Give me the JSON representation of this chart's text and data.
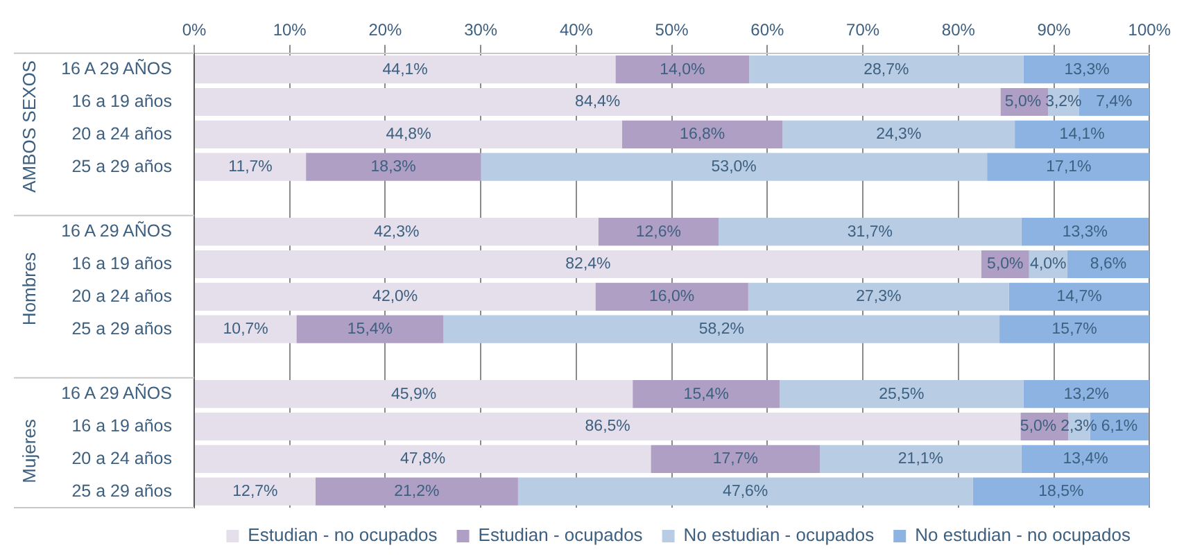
{
  "chart_data": {
    "type": "bar",
    "orientation": "horizontal",
    "stacked": true,
    "grid": "x",
    "legend": "bottom",
    "categories": [
      "16 A 29 AÑOS",
      "16 a 19 años",
      "20 a 24 años",
      "25 a 29 años",
      null,
      "16 A 29 AÑOS",
      "16 a 19 años",
      "20 a 24 años",
      "25 a 29 años",
      null,
      "16 A 29 AÑOS",
      "16 a 19 años",
      "20 a 24 años",
      "25 a 29 años"
    ],
    "annotations": [
      "AMBOS SEXOS",
      "Hombres",
      "Mujeres"
    ],
    "xlim": [
      0,
      100
    ],
    "xticks": [
      {
        "value": 0,
        "label": "0%"
      },
      {
        "value": 10,
        "label": "10%"
      },
      {
        "value": 20,
        "label": "20%"
      },
      {
        "value": 30,
        "label": "30%"
      },
      {
        "value": 40,
        "label": "40%"
      },
      {
        "value": 50,
        "label": "50%"
      },
      {
        "value": 60,
        "label": "60%"
      },
      {
        "value": 70,
        "label": "70%"
      },
      {
        "value": 80,
        "label": "80%"
      },
      {
        "value": 90,
        "label": "90%"
      },
      {
        "value": 100,
        "label": "100%"
      }
    ],
    "series": [
      {
        "name": "Estudian - no ocupados",
        "color": "#e4dfeb",
        "values": [
          44.1,
          84.4,
          44.8,
          11.7,
          null,
          42.3,
          82.4,
          42.0,
          10.7,
          null,
          45.9,
          86.5,
          47.8,
          12.7
        ],
        "value_labels": [
          "44,1%",
          "84,4%",
          "44,8%",
          "11,7%",
          null,
          "42,3%",
          "82,4%",
          "42,0%",
          "10,7%",
          null,
          "45,9%",
          "86,5%",
          "47,8%",
          "12,7%"
        ]
      },
      {
        "name": "Estudian - ocupados",
        "color": "#b09fc5",
        "values": [
          14.0,
          5.0,
          16.8,
          18.3,
          null,
          12.6,
          5.0,
          16.0,
          15.4,
          null,
          15.4,
          5.0,
          17.7,
          21.2
        ],
        "value_labels": [
          "14,0%",
          "5,0%",
          "16,8%",
          "18,3%",
          null,
          "12,6%",
          "5,0%",
          "16,0%",
          "15,4%",
          null,
          "15,4%",
          "5,0%",
          "17,7%",
          "21,2%"
        ]
      },
      {
        "name": "No estudian - ocupados",
        "color": "#b8cce4",
        "values": [
          28.7,
          3.2,
          24.3,
          53.0,
          null,
          31.7,
          4.0,
          27.3,
          58.2,
          null,
          25.5,
          2.3,
          21.1,
          47.6
        ],
        "value_labels": [
          "28,7%",
          "3,2%",
          "24,3%",
          "53,0%",
          null,
          "31,7%",
          "4,0%",
          "27,3%",
          "58,2%",
          null,
          "25,5%",
          "2,3%",
          "21,1%",
          "47,6%"
        ]
      },
      {
        "name": "No estudian - no ocupados",
        "color": "#8db3e2",
        "values": [
          13.3,
          7.4,
          14.1,
          17.1,
          null,
          13.3,
          8.6,
          14.7,
          15.7,
          null,
          13.2,
          6.1,
          13.4,
          18.5
        ],
        "value_labels": [
          "13,3%",
          "7,4%",
          "14,1%",
          "17,1%",
          null,
          "13,3%",
          "8,6%",
          "14,7%",
          "15,7%",
          null,
          "13,2%",
          "6,1%",
          "13,4%",
          "18,5%"
        ]
      }
    ]
  }
}
